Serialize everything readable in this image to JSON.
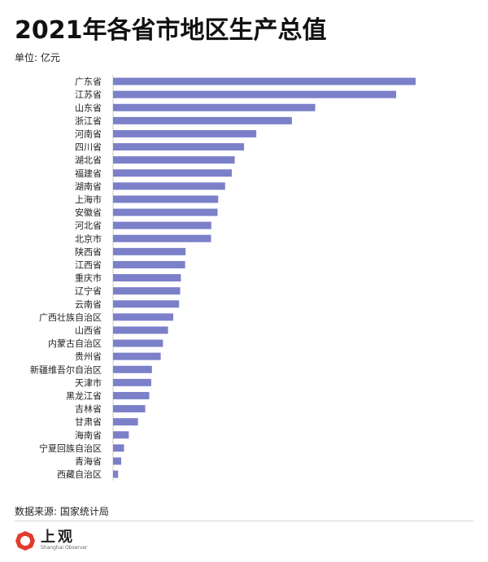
{
  "header": {
    "title": "2021年各省市地区生产总值",
    "unit": "单位: 亿元"
  },
  "footer": {
    "source": "数据来源: 国家统计局",
    "logo_cn": "上观",
    "logo_en": "Shanghai Observer"
  },
  "colors": {
    "bar": "#7b80c9",
    "text": "#222222"
  },
  "chart_data": {
    "type": "bar",
    "orientation": "horizontal",
    "title": "2021年各省市地区生产总值",
    "unit": "亿元",
    "grid": false,
    "categories": [
      "广东省",
      "江苏省",
      "山东省",
      "浙江省",
      "河南省",
      "四川省",
      "湖北省",
      "福建省",
      "湖南省",
      "上海市",
      "安徽省",
      "河北省",
      "北京市",
      "陕西省",
      "江西省",
      "重庆市",
      "辽宁省",
      "云南省",
      "广西壮族自治区",
      "山西省",
      "内蒙古自治区",
      "贵州省",
      "新疆维吾尔自治区",
      "天津市",
      "黑龙江省",
      "吉林省",
      "甘肃省",
      "海南省",
      "宁夏回族自治区",
      "青海省",
      "西藏自治区"
    ],
    "values": [
      124370,
      116364,
      83096,
      73516,
      58887,
      53851,
      50013,
      48810,
      46063,
      43215,
      42959,
      40391,
      40270,
      29801,
      29620,
      27894,
      27584,
      27147,
      24741,
      22590,
      20514,
      19586,
      15984,
      15695,
      14879,
      13236,
      10243,
      6475,
      4522,
      3347,
      2080
    ]
  }
}
